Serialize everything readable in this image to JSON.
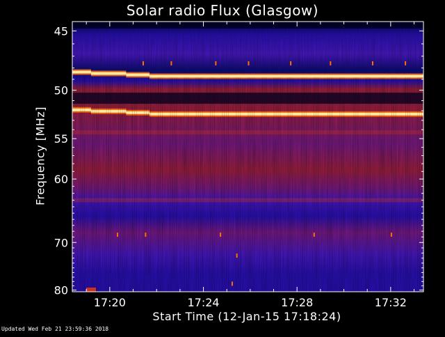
{
  "chart_data": {
    "type": "heatmap",
    "title": "Solar radio Flux (Glasgow)",
    "xlabel": "Start Time (12-Jan-15 17:18:24)",
    "ylabel": "Frequency [MHz]",
    "x_ticks": [
      "17:20",
      "17:24",
      "17:28",
      "17:32"
    ],
    "x_tick_values_min": [
      1.6,
      5.6,
      9.6,
      13.6
    ],
    "xlim_min": [
      0,
      15
    ],
    "y_ticks": [
      45,
      50,
      55,
      60,
      70,
      80
    ],
    "ylim": [
      44.3,
      80.4
    ],
    "y_scale": "reciprocal",
    "colormap": [
      "#00001e",
      "#0c0c78",
      "#2a10b8",
      "#4a18c4",
      "#7a1a86",
      "#a02040",
      "#c8321e",
      "#ff7000",
      "#ffe8a0",
      "#ffffff"
    ],
    "bands": [
      {
        "freq": 48.6,
        "type": "emission-line"
      },
      {
        "freq": 52.2,
        "type": "emission-line"
      },
      {
        "freq": 50.9,
        "type": "dark-band"
      },
      {
        "freq": 54.3,
        "type": "red-band"
      },
      {
        "freq": 63.0,
        "type": "red-band"
      }
    ]
  },
  "footer": "Updated Wed Feb 21 23:59:36 2018"
}
